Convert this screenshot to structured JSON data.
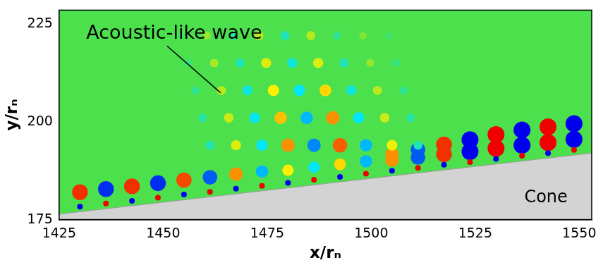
{
  "chart_data": {
    "type": "contour",
    "xlabel": "x/rₙ",
    "ylabel": "y/rₙ",
    "xlim": [
      1425,
      1553
    ],
    "ylim": [
      175,
      228.5
    ],
    "xticks": [
      1425,
      1450,
      1475,
      1500,
      1525,
      1550
    ],
    "yticks": [
      175,
      200,
      225
    ],
    "grid": false,
    "field": {
      "value_range": [
        -1,
        1
      ],
      "x": [
        1430,
        1436.25,
        1442.5,
        1448.75,
        1455,
        1461.25,
        1467.5,
        1473.75,
        1480,
        1486.25,
        1492.5,
        1498.75,
        1505,
        1511.25,
        1517.5,
        1523.75,
        1530,
        1536.25,
        1542.5,
        1548.75,
        1505,
        1511.25,
        1517.5,
        1523.75,
        1530,
        1536.25,
        1542.5,
        1548.75,
        1430,
        1436.25,
        1442.5,
        1448.75,
        1455,
        1461.25,
        1467.5,
        1473.75,
        1480,
        1486.25,
        1492.5,
        1498.75,
        1505,
        1511.25,
        1517.5,
        1523.75,
        1530,
        1536.25,
        1542.5,
        1548.75,
        1461.25,
        1459.5,
        1457.75,
        1456,
        1454.25,
        1467.5,
        1465.75,
        1464,
        1462.25,
        1460.5,
        1473.75,
        1472,
        1470.25,
        1468.5,
        1466.75,
        1480,
        1478.25,
        1476.5,
        1474.75,
        1473,
        1486.25,
        1484.5,
        1482.75,
        1481,
        1479.25,
        1492.5,
        1490.75,
        1489,
        1487.25,
        1485.5,
        1498.75,
        1497,
        1495.25,
        1493.5,
        1491.75,
        1505,
        1503.25,
        1501.5,
        1499.75,
        1498,
        1511.25,
        1509.5,
        1507.75,
        1506,
        1504.25
      ],
      "y": [
        182.0,
        182.8,
        183.5,
        184.3,
        185.1,
        185.8,
        186.6,
        187.3,
        187.6,
        188.4,
        189.1,
        189.9,
        191.7,
        192.9,
        194.2,
        195.4,
        196.7,
        197.9,
        198.7,
        199.5,
        190.2,
        190.9,
        191.7,
        192.4,
        193.2,
        194.0,
        194.7,
        195.5,
        178.3,
        179.1,
        179.8,
        180.6,
        181.4,
        182.1,
        182.9,
        183.6,
        184.4,
        185.2,
        185.9,
        186.7,
        187.5,
        188.2,
        189.0,
        189.7,
        190.5,
        191.3,
        192.0,
        192.8,
        194,
        201,
        208,
        215,
        222,
        194,
        201,
        208,
        215,
        222,
        194,
        201,
        208,
        215,
        222,
        194,
        201,
        208,
        215,
        222,
        194,
        201,
        208,
        215,
        222,
        194,
        201,
        208,
        215,
        222,
        194,
        201,
        208,
        215,
        222,
        194,
        201,
        208,
        215,
        222,
        194,
        201,
        208,
        215,
        222
      ],
      "values": [
        0.9,
        -0.9,
        0.9,
        -0.9,
        0.85,
        -0.8,
        0.7,
        -0.6,
        0.5,
        -0.5,
        0.55,
        -0.6,
        0.7,
        -0.8,
        0.9,
        -1,
        1,
        -1,
        1,
        -1,
        0.7,
        -0.8,
        0.9,
        -1,
        1,
        -1,
        1,
        -1,
        -1,
        1,
        -1,
        1,
        -1,
        1,
        -1,
        1,
        -1,
        1,
        -1,
        1,
        -1,
        1,
        -1,
        1,
        -1,
        1,
        -1,
        1,
        -0.3,
        -0.25,
        -0.2,
        -0.15,
        -0.1,
        0.4,
        0.35,
        0.3,
        0.25,
        0.2,
        -0.5,
        -0.45,
        -0.4,
        -0.3,
        -0.25,
        0.7,
        0.6,
        0.5,
        0.4,
        0.3,
        -0.7,
        -0.6,
        -0.5,
        -0.4,
        -0.3,
        0.8,
        0.7,
        0.55,
        0.4,
        0.3,
        -0.6,
        -0.5,
        -0.4,
        -0.3,
        -0.2,
        0.45,
        0.35,
        0.3,
        0.2,
        0.15,
        -0.3,
        -0.25,
        -0.2,
        -0.15,
        -0.1
      ]
    },
    "cone": {
      "label": "Cone",
      "x": [
        1425,
        1553
      ],
      "y": [
        176.4,
        192
      ],
      "label_x": 1542,
      "label_y": 180.5
    },
    "annotations": [
      {
        "text": "Acoustic-like wave",
        "x": 1431.5,
        "y": 222.4,
        "arrow_x": 1463.8,
        "arrow_y": 207.4
      }
    ]
  }
}
